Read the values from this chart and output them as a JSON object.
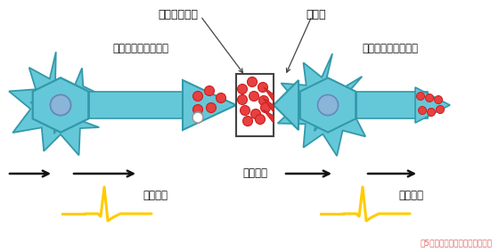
{
  "bg_color": "#ffffff",
  "neuron_color": "#65c8d8",
  "neuron_outline": "#3399aa",
  "nucleus_color": "#8ab4d8",
  "vesicle_color": "#e84040",
  "vesicle_outline": "#cc2020",
  "signal_color": "#ffcc00",
  "arrow_color": "#111111",
  "text_color": "#111111",
  "caption_color": "#e06060",
  "label_neurotransmitter": "神経伝達物質",
  "label_receptor": "受容体",
  "label_pre_neuron": "シナプス前神経細胞",
  "label_post_neuron": "シナプス後神経細胞",
  "label_synapse": "シナプス",
  "label_ap": "活動電位",
  "caption": "囵5．シナプスにおける情報伝達",
  "figsize": [
    5.6,
    2.83
  ],
  "dpi": 100
}
